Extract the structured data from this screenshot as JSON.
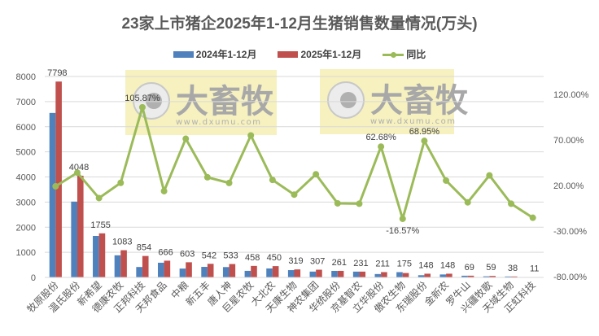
{
  "chart_data": {
    "type": "bar+line",
    "title": "23家上市猪企2025年1-12月生猪销售数量情况(万头)",
    "xlabel": "",
    "ylabel": "",
    "legend": {
      "position": "top",
      "entries": [
        "2024年1-12月",
        "2025年1-12月",
        "同比"
      ]
    },
    "grid": true,
    "categories": [
      "牧原股份",
      "温氏股份",
      "新希望",
      "德康农牧",
      "正邦科技",
      "天邦食品",
      "中粮",
      "新五丰",
      "唐人神",
      "巨星农牧",
      "大北农",
      "天康生物",
      "神农集团",
      "华统股份",
      "京基智农",
      "立华股份",
      "傲农生物",
      "东瑞股份",
      "金新农",
      "罗牛山",
      "兴疆牧歌",
      "天域生物",
      "正虹科技"
    ],
    "series": [
      {
        "name": "2024年1-12月",
        "type": "bar",
        "axis": "left",
        "color": "#4f81bd",
        "values": [
          6548,
          3018,
          1652,
          881,
          415,
          585,
          352,
          420,
          412,
          262,
          357,
          290,
          232,
          260,
          231,
          135,
          210,
          88,
          118,
          68,
          45,
          38,
          13
        ]
      },
      {
        "name": "2025年1-12月",
        "type": "bar",
        "axis": "left",
        "color": "#c0504d",
        "values": [
          7798,
          4048,
          1755,
          1083,
          854,
          666,
          603,
          542,
          533,
          458,
          450,
          319,
          307,
          261,
          231,
          211,
          175,
          148,
          148,
          69,
          59,
          38,
          11
        ]
      },
      {
        "name": "同比",
        "type": "line",
        "axis": "right",
        "color": "#9bbb59",
        "unit": "%",
        "values": [
          19.1,
          34.1,
          6.2,
          22.9,
          105.87,
          13.8,
          71.3,
          29.0,
          22.8,
          74.9,
          26.1,
          10.0,
          32.3,
          0.4,
          0.0,
          62.68,
          -16.57,
          68.95,
          25.4,
          1.5,
          31.1,
          0.0,
          -15.4
        ],
        "labeled_points": {
          "4": "105.87%",
          "15": "62.68%",
          "16": "-16.57%",
          "17": "68.95%"
        }
      }
    ],
    "bar_data_labels": [
      "7798",
      "4048",
      "1755",
      "1083",
      "854",
      "666",
      "603",
      "542",
      "533",
      "458",
      "450",
      "319",
      "307",
      "261",
      "231",
      "211",
      "175",
      "148",
      "148",
      "69",
      "59",
      "38",
      "11"
    ],
    "left_axis": {
      "min": 0,
      "max": 8000,
      "step": 1000,
      "ticks": [
        "0",
        "1000",
        "2000",
        "3000",
        "4000",
        "5000",
        "6000",
        "7000",
        "8000"
      ]
    },
    "right_axis": {
      "min": -80,
      "max": 120,
      "step": 50,
      "ticks": [
        "-80.00%",
        "-30.00%",
        "20.00%",
        "70.00%",
        "120.00%"
      ]
    },
    "watermark": {
      "text": "大畜牧",
      "url": "www.dxumu.com"
    }
  }
}
